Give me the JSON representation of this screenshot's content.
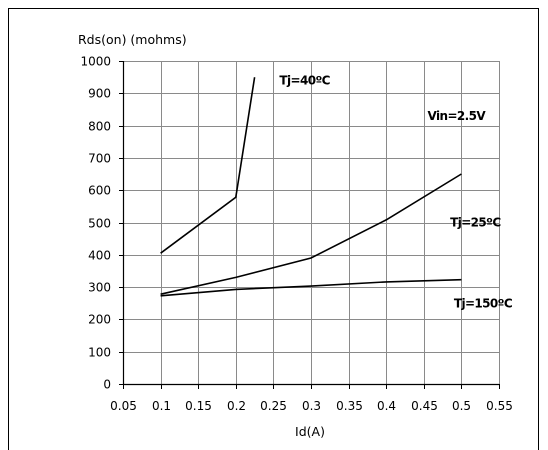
{
  "chart_data": {
    "type": "line",
    "ylabel": "Rds(on) (mohms)",
    "xlabel": "Id(A)",
    "xlim": [
      0.05,
      0.55
    ],
    "ylim": [
      0,
      1000
    ],
    "x_ticks": [
      "0.05",
      "0.1",
      "0.15",
      "0.2",
      "0.25",
      "0.3",
      "0.35",
      "0.4",
      "0.45",
      "0.5",
      "0.55"
    ],
    "y_ticks": [
      "0",
      "100",
      "200",
      "300",
      "400",
      "500",
      "600",
      "700",
      "800",
      "900",
      "1000"
    ],
    "grid": true,
    "series": [
      {
        "name": "Tj=40ºC",
        "x": [
          0.1,
          0.2,
          0.225
        ],
        "y": [
          405,
          578,
          950
        ]
      },
      {
        "name": "Tj=25ºC",
        "x": [
          0.1,
          0.2,
          0.3,
          0.4,
          0.5
        ],
        "y": [
          278,
          330,
          390,
          508,
          650
        ]
      },
      {
        "name": "Tj=150ºC",
        "x": [
          0.1,
          0.2,
          0.3,
          0.4,
          0.5
        ],
        "y": [
          273,
          293,
          303,
          316,
          323
        ]
      }
    ],
    "annotations": [
      {
        "text": "Tj=40ºC",
        "x": 0.258,
        "y": 940
      },
      {
        "text": "Vin=2.5V",
        "x": 0.455,
        "y": 830
      },
      {
        "text": "Tj=25ºC",
        "x": 0.485,
        "y": 500
      },
      {
        "text": "Tj=150ºC",
        "x": 0.49,
        "y": 250
      }
    ]
  }
}
